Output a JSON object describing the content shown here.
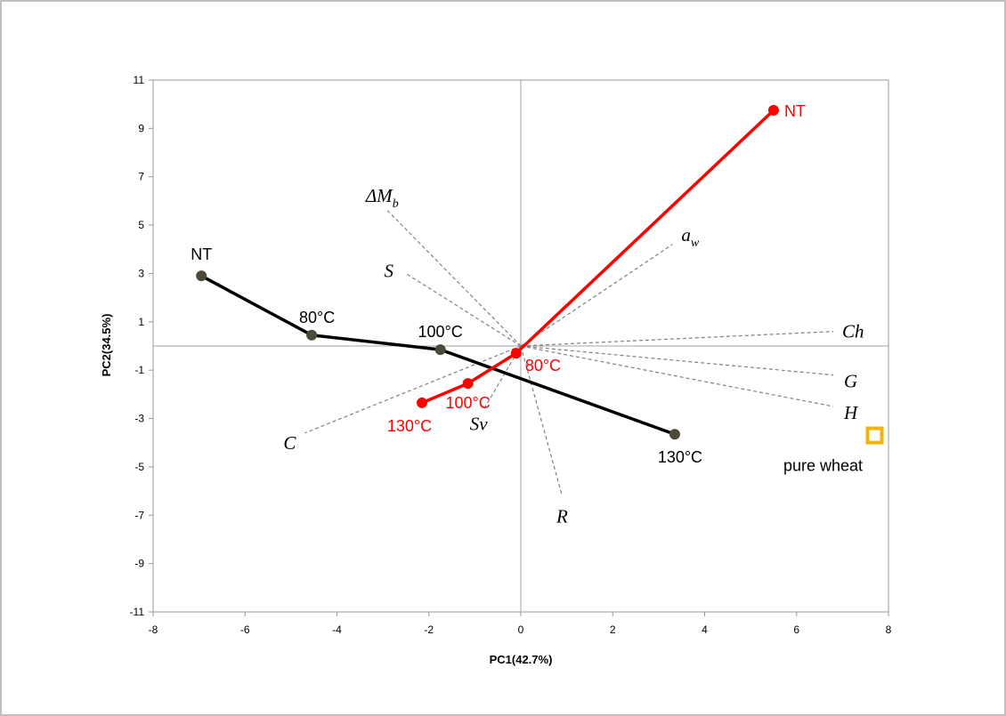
{
  "chart_data": {
    "type": "scatter",
    "xlabel": "PC1(42.7%)",
    "ylabel": "PC2(34.5%)",
    "xlim": [
      -8,
      8
    ],
    "ylim": [
      -11,
      11
    ],
    "x_ticks": [
      "-8",
      "-6",
      "-4",
      "-2",
      "0",
      "2",
      "4",
      "6",
      "8"
    ],
    "y_ticks": [
      "11",
      "9",
      "7",
      "5",
      "3",
      "1",
      "-1",
      "-3",
      "-5",
      "-7",
      "-9",
      "-11"
    ],
    "series": [
      {
        "color": "#000000",
        "marker_color": "#4d4a3a",
        "points": [
          {
            "label": "NT",
            "x": -6.95,
            "y": 2.9
          },
          {
            "label": "80°C",
            "x": -4.55,
            "y": 0.45
          },
          {
            "label": "100°C",
            "x": -1.75,
            "y": -0.15
          },
          {
            "label": "130°C",
            "x": 3.35,
            "y": -3.65
          }
        ]
      },
      {
        "color": "#ff0000",
        "marker_color": "#ff0000",
        "points": [
          {
            "label": "NT",
            "x": 5.5,
            "y": 9.75
          },
          {
            "label": "80°C",
            "x": -0.1,
            "y": -0.3
          },
          {
            "label": "100°C",
            "x": -1.15,
            "y": -1.55
          },
          {
            "label": "130°C",
            "x": -2.15,
            "y": -2.35
          }
        ]
      }
    ],
    "extra_point": {
      "label": "pure wheat",
      "x": 7.7,
      "y": -3.7,
      "color": "#f2b40d"
    },
    "loading_vectors": [
      {
        "name": "ΔM",
        "subscript": "b",
        "x": -2.9,
        "y": 5.6
      },
      {
        "name": "a",
        "subscript": "w",
        "x": 3.3,
        "y": 4.2
      },
      {
        "name": "S",
        "x": -2.5,
        "y": 3.0
      },
      {
        "name": "Ch",
        "x": 6.8,
        "y": 0.6
      },
      {
        "name": "G",
        "x": 6.8,
        "y": -1.2
      },
      {
        "name": "H",
        "x": 6.8,
        "y": -2.5
      },
      {
        "name": "C",
        "x": -4.7,
        "y": -3.6
      },
      {
        "name": "Sv",
        "x": -0.8,
        "y": -2.6
      },
      {
        "name": "R",
        "x": 0.9,
        "y": -6.2
      }
    ],
    "grid": false
  }
}
